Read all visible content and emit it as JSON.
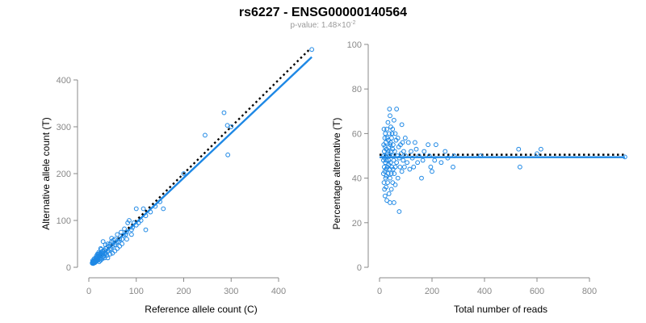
{
  "title": "rs6227 - ENSG00000140564",
  "subtitle": {
    "prefix": "p-value: 1.48×10",
    "exponent": "-2"
  },
  "colors": {
    "points": "#1E88E5",
    "fit": "#1E88E5",
    "reference": "#000000",
    "axis": "#888888"
  },
  "chart_data": [
    {
      "type": "scatter",
      "title": "",
      "xlabel": "Reference allele count (C)",
      "ylabel": "Alternative allele count (T)",
      "xlim": [
        0,
        470
      ],
      "ylim": [
        0,
        470
      ],
      "xticks": [
        0,
        100,
        200,
        300,
        400
      ],
      "yticks": [
        0,
        100,
        200,
        300,
        400
      ],
      "reference_line": {
        "slope": 1.0,
        "intercept": 0,
        "style": "dotted",
        "x_range": [
          10,
          465
        ]
      },
      "fit_line": {
        "slope": 0.955,
        "intercept": 0,
        "style": "solid",
        "x_range": [
          5,
          470
        ]
      },
      "series": [
        {
          "name": "samples",
          "points": [
            [
              470,
              465
            ],
            [
              285,
              330
            ],
            [
              292,
              303
            ],
            [
              293,
              240
            ],
            [
              245,
              282
            ],
            [
              300,
              300
            ],
            [
              200,
              200
            ],
            [
              150,
              140
            ],
            [
              157,
              125
            ],
            [
              140,
              130
            ],
            [
              130,
              118
            ],
            [
              120,
              110
            ],
            [
              115,
              125
            ],
            [
              110,
              100
            ],
            [
              105,
              95
            ],
            [
              100,
              125
            ],
            [
              100,
              90
            ],
            [
              95,
              95
            ],
            [
              92,
              85
            ],
            [
              90,
              80
            ],
            [
              85,
              100
            ],
            [
              82,
              95
            ],
            [
              80,
              75
            ],
            [
              78,
              70
            ],
            [
              75,
              82
            ],
            [
              73,
              68
            ],
            [
              70,
              60
            ],
            [
              68,
              75
            ],
            [
              65,
              60
            ],
            [
              62,
              55
            ],
            [
              60,
              70
            ],
            [
              58,
              52
            ],
            [
              55,
              60
            ],
            [
              55,
              48
            ],
            [
              52,
              58
            ],
            [
              50,
              45
            ],
            [
              48,
              55
            ],
            [
              47,
              40
            ],
            [
              45,
              50
            ],
            [
              44,
              38
            ],
            [
              42,
              45
            ],
            [
              40,
              35
            ],
            [
              40,
              50
            ],
            [
              38,
              42
            ],
            [
              36,
              30
            ],
            [
              35,
              40
            ],
            [
              34,
              28
            ],
            [
              33,
              36
            ],
            [
              32,
              30
            ],
            [
              31,
              25
            ],
            [
              30,
              35
            ],
            [
              30,
              22
            ],
            [
              29,
              30
            ],
            [
              28,
              27
            ],
            [
              27,
              33
            ],
            [
              26,
              24
            ],
            [
              25,
              28
            ],
            [
              25,
              20
            ],
            [
              24,
              26
            ],
            [
              23,
              18
            ],
            [
              23,
              30
            ],
            [
              22,
              22
            ],
            [
              21,
              25
            ],
            [
              20,
              18
            ],
            [
              20,
              28
            ],
            [
              19,
              15
            ],
            [
              18,
              22
            ],
            [
              18,
              17
            ],
            [
              17,
              20
            ],
            [
              16,
              14
            ],
            [
              16,
              24
            ],
            [
              15,
              18
            ],
            [
              15,
              12
            ],
            [
              14,
              16
            ],
            [
              14,
              20
            ],
            [
              13,
              14
            ],
            [
              13,
              10
            ],
            [
              12,
              15
            ],
            [
              12,
              12
            ],
            [
              11,
              18
            ],
            [
              11,
              9
            ],
            [
              10,
              13
            ],
            [
              10,
              10
            ],
            [
              9,
              12
            ],
            [
              9,
              8
            ],
            [
              8,
              11
            ],
            [
              8,
              14
            ],
            [
              7,
              9
            ],
            [
              30,
              55
            ],
            [
              35,
              48
            ],
            [
              45,
              28
            ],
            [
              50,
              30
            ],
            [
              60,
              40
            ],
            [
              65,
              45
            ],
            [
              70,
              50
            ],
            [
              40,
              20
            ],
            [
              25,
              40
            ],
            [
              55,
              35
            ],
            [
              80,
              60
            ],
            [
              90,
              70
            ],
            [
              120,
              80
            ],
            [
              25,
              15
            ],
            [
              22,
              12
            ],
            [
              28,
              18
            ],
            [
              33,
              20
            ],
            [
              38,
              25
            ],
            [
              18,
              28
            ],
            [
              21,
              32
            ],
            [
              26,
              38
            ],
            [
              48,
              62
            ]
          ]
        }
      ]
    },
    {
      "type": "scatter",
      "title": "",
      "xlabel": "Total number of reads",
      "ylabel": "Percentage alternative (T)",
      "xlim": [
        0,
        900
      ],
      "ylim": [
        0,
        100
      ],
      "xticks": [
        0,
        200,
        400,
        600,
        800
      ],
      "yticks": [
        0,
        20,
        40,
        60,
        80,
        100
      ],
      "reference_line": {
        "y": 50.5,
        "style": "dotted",
        "x_range": [
          0,
          935
        ]
      },
      "fit_line": {
        "y": 49.4,
        "style": "solid",
        "x_range": [
          0,
          935
        ]
      },
      "series": [
        {
          "name": "samples",
          "points": [
            [
              935,
              49.5
            ],
            [
              615,
              53
            ],
            [
              600,
              51
            ],
            [
              530,
              53
            ],
            [
              535,
              45
            ],
            [
              385,
              50
            ],
            [
              285,
              50
            ],
            [
              280,
              45
            ],
            [
              260,
              49
            ],
            [
              250,
              52
            ],
            [
              235,
              47
            ],
            [
              215,
              55
            ],
            [
              210,
              48
            ],
            [
              200,
              43
            ],
            [
              195,
              45
            ],
            [
              190,
              50
            ],
            [
              185,
              55
            ],
            [
              170,
              52
            ],
            [
              165,
              48
            ],
            [
              160,
              40
            ],
            [
              150,
              50
            ],
            [
              145,
              47
            ],
            [
              140,
              53
            ],
            [
              135,
              56
            ],
            [
              130,
              45
            ],
            [
              125,
              49
            ],
            [
              120,
              52
            ],
            [
              115,
              44
            ],
            [
              110,
              56
            ],
            [
              105,
              47
            ],
            [
              100,
              50
            ],
            [
              98,
              58
            ],
            [
              95,
              45
            ],
            [
              92,
              52
            ],
            [
              90,
              48
            ],
            [
              88,
              56
            ],
            [
              85,
              43
            ],
            [
              82,
              51
            ],
            [
              80,
              55
            ],
            [
              78,
              45
            ],
            [
              75,
              49
            ],
            [
              73,
              54
            ],
            [
              70,
              40
            ],
            [
              68,
              50
            ],
            [
              65,
              47
            ],
            [
              63,
              57
            ],
            [
              60,
              60
            ],
            [
              60,
              45
            ],
            [
              58,
              52
            ],
            [
              56,
              42
            ],
            [
              55,
              66
            ],
            [
              54,
              48
            ],
            [
              52,
              55
            ],
            [
              50,
              38
            ],
            [
              50,
              62
            ],
            [
              48,
              50
            ],
            [
              47,
              45
            ],
            [
              46,
              58
            ],
            [
              45,
              35
            ],
            [
              44,
              52
            ],
            [
              43,
              63
            ],
            [
              42,
              47
            ],
            [
              41,
              55
            ],
            [
              40,
              40
            ],
            [
              40,
              68
            ],
            [
              39,
              50
            ],
            [
              38,
              44
            ],
            [
              37,
              60
            ],
            [
              36,
              33
            ],
            [
              35,
              54
            ],
            [
              35,
              48
            ],
            [
              34,
              57
            ],
            [
              33,
              42
            ],
            [
              32,
              65
            ],
            [
              31,
              38
            ],
            [
              30,
              51
            ],
            [
              30,
              45
            ],
            [
              29,
              58
            ],
            [
              28,
              30
            ],
            [
              28,
              62
            ],
            [
              27,
              48
            ],
            [
              26,
              53
            ],
            [
              25,
              36
            ],
            [
              25,
              44
            ],
            [
              24,
              56
            ],
            [
              24,
              50
            ],
            [
              23,
              40
            ],
            [
              22,
              60
            ],
            [
              22,
              47
            ],
            [
              21,
              32
            ],
            [
              21,
              54
            ],
            [
              20,
              43
            ],
            [
              20,
              58
            ],
            [
              19,
              49
            ],
            [
              19,
              35
            ],
            [
              18,
              52
            ],
            [
              18,
              45
            ],
            [
              17,
              62
            ],
            [
              17,
              38
            ],
            [
              16,
              50
            ],
            [
              16,
              55
            ],
            [
              15,
              42
            ],
            [
              15,
              48
            ],
            [
              38,
              71
            ],
            [
              65,
              71
            ],
            [
              55,
              29
            ],
            [
              40,
              29
            ],
            [
              75,
              25
            ],
            [
              30,
              45
            ],
            [
              45,
              42
            ],
            [
              35,
              46
            ],
            [
              50,
              53
            ],
            [
              70,
              58
            ],
            [
              85,
              64
            ],
            [
              60,
              37
            ],
            [
              42,
              56
            ],
            [
              52,
              44
            ],
            [
              33,
              52
            ],
            [
              26,
              41
            ],
            [
              48,
              60
            ]
          ]
        }
      ]
    }
  ]
}
